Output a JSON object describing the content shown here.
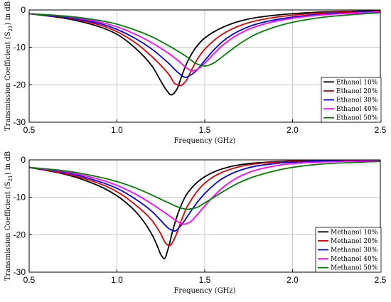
{
  "chart_data": [
    {
      "type": "line",
      "title": "",
      "xlabel": "Frequency (GHz)",
      "ylabel_main": "Transmission Coefficient (S",
      "ylabel_sub": "21",
      "ylabel_tail": ") in dB",
      "xlim": [
        0.5,
        2.5
      ],
      "ylim": [
        -30,
        0
      ],
      "xticks": [
        0.5,
        1.0,
        1.5,
        2.0,
        2.5
      ],
      "xtick_labels": [
        "0.5",
        "1.0",
        "1.5",
        "2.0",
        "2.5"
      ],
      "yticks": [
        0,
        -10,
        -20,
        -30
      ],
      "ytick_labels": [
        "0",
        "-10",
        "-20",
        "-30"
      ],
      "grid": true,
      "legend_position": "bottom-right",
      "series": [
        {
          "name": "Ethanol 10%",
          "color": "#000000",
          "values": {
            "x": [
              0.5,
              0.7,
              0.9,
              1.0,
              1.1,
              1.2,
              1.25,
              1.28,
              1.31,
              1.34,
              1.37,
              1.4,
              1.45,
              1.5,
              1.6,
              1.7,
              1.8,
              2.0,
              2.2,
              2.5
            ],
            "y": [
              -1.0,
              -2.2,
              -4.5,
              -6.5,
              -10,
              -15,
              -19,
              -21.3,
              -22.7,
              -21.3,
              -17.5,
              -14,
              -10,
              -7.5,
              -4.7,
              -3.0,
              -2.0,
              -1.0,
              -0.5,
              -0.2
            ]
          }
        },
        {
          "name": "Ethanol 20%",
          "color": "#e00000",
          "values": {
            "x": [
              0.5,
              0.7,
              0.9,
              1.0,
              1.1,
              1.2,
              1.3,
              1.33,
              1.36,
              1.39,
              1.42,
              1.46,
              1.5,
              1.6,
              1.7,
              1.8,
              2.0,
              2.2,
              2.5
            ],
            "y": [
              -1.0,
              -2.0,
              -4.0,
              -5.8,
              -8.6,
              -12.5,
              -17.5,
              -19.7,
              -20.2,
              -19.2,
              -16.5,
              -13,
              -10.5,
              -6.5,
              -4.2,
              -2.8,
              -1.4,
              -0.7,
              -0.3
            ]
          }
        },
        {
          "name": "Ethanol 30%",
          "color": "#0000e0",
          "values": {
            "x": [
              0.5,
              0.7,
              0.9,
              1.0,
              1.1,
              1.2,
              1.3,
              1.35,
              1.39,
              1.42,
              1.45,
              1.5,
              1.55,
              1.6,
              1.7,
              1.8,
              2.0,
              2.2,
              2.5
            ],
            "y": [
              -1.0,
              -1.9,
              -3.6,
              -5.2,
              -7.5,
              -10.5,
              -14.5,
              -16.8,
              -18,
              -17.4,
              -16.3,
              -13.5,
              -10.8,
              -8.5,
              -5.5,
              -3.7,
              -1.9,
              -1.0,
              -0.4
            ]
          }
        },
        {
          "name": "Ethanol 40%",
          "color": "#ff00ff",
          "values": {
            "x": [
              0.5,
              0.7,
              0.9,
              1.0,
              1.1,
              1.2,
              1.3,
              1.35,
              1.4,
              1.43,
              1.47,
              1.5,
              1.55,
              1.6,
              1.7,
              1.8,
              2.0,
              2.2,
              2.5
            ],
            "y": [
              -1.0,
              -1.7,
              -3.2,
              -4.5,
              -6.4,
              -8.8,
              -11.8,
              -13.6,
              -15.6,
              -16.3,
              -15.5,
              -14.2,
              -11.8,
              -9.5,
              -6.3,
              -4.3,
              -2.2,
              -1.2,
              -0.5
            ]
          }
        },
        {
          "name": "Ethanol 50%",
          "color": "#008000",
          "values": {
            "x": [
              0.5,
              0.7,
              0.9,
              1.0,
              1.1,
              1.2,
              1.3,
              1.4,
              1.45,
              1.5,
              1.55,
              1.6,
              1.7,
              1.8,
              2.0,
              2.2,
              2.5
            ],
            "y": [
              -1.0,
              -1.6,
              -2.8,
              -3.8,
              -5.3,
              -7.2,
              -9.7,
              -12.6,
              -14.3,
              -15.0,
              -14.2,
              -12.5,
              -9.0,
              -6.3,
              -3.3,
              -1.8,
              -0.7
            ]
          }
        }
      ]
    },
    {
      "type": "line",
      "title": "",
      "xlabel": "Frequency (GHz)",
      "ylabel_main": "Transmission Coefficient (S",
      "ylabel_sub": "21",
      "ylabel_tail": ") in dB",
      "xlim": [
        0.5,
        2.5
      ],
      "ylim": [
        -30,
        0
      ],
      "xticks": [
        0.5,
        1.0,
        1.5,
        2.0,
        2.5
      ],
      "xtick_labels": [
        "0.5",
        "1.0",
        "1.5",
        "2.0",
        "2.5"
      ],
      "yticks": [
        0,
        -10,
        -20,
        -30
      ],
      "ytick_labels": [
        "0",
        "-10",
        "-20",
        "-30"
      ],
      "grid": true,
      "legend_position": "bottom-right",
      "series": [
        {
          "name": "Methanol 10%",
          "color": "#000000",
          "values": {
            "x": [
              0.5,
              0.7,
              0.9,
              1.0,
              1.1,
              1.15,
              1.2,
              1.23,
              1.25,
              1.27,
              1.29,
              1.32,
              1.35,
              1.4,
              1.5,
              1.6,
              1.7,
              1.8,
              2.0,
              2.2,
              2.5
            ],
            "y": [
              -2.0,
              -3.8,
              -7.0,
              -9.6,
              -13.5,
              -16.3,
              -20.0,
              -23.0,
              -25.3,
              -26.4,
              -24.0,
              -18.5,
              -14.0,
              -9.0,
              -4.5,
              -2.4,
              -1.3,
              -0.8,
              -0.3,
              -0.2,
              -0.1
            ]
          }
        },
        {
          "name": "Methanol 20%",
          "color": "#e00000",
          "values": {
            "x": [
              0.5,
              0.7,
              0.9,
              1.0,
              1.1,
              1.2,
              1.25,
              1.28,
              1.3,
              1.33,
              1.37,
              1.4,
              1.5,
              1.6,
              1.7,
              1.8,
              2.0,
              2.2,
              2.5
            ],
            "y": [
              -2.0,
              -3.6,
              -6.3,
              -8.5,
              -11.8,
              -16.2,
              -19.8,
              -22.4,
              -22.9,
              -20.8,
              -15.8,
              -12.5,
              -6.2,
              -3.3,
              -1.8,
              -1.0,
              -0.4,
              -0.2,
              -0.1
            ]
          }
        },
        {
          "name": "Methanol 30%",
          "color": "#0000e0",
          "values": {
            "x": [
              0.5,
              0.7,
              0.9,
              1.0,
              1.1,
              1.2,
              1.25,
              1.3,
              1.33,
              1.36,
              1.4,
              1.45,
              1.5,
              1.6,
              1.7,
              1.8,
              2.0,
              2.2,
              2.5
            ],
            "y": [
              -2.0,
              -3.3,
              -5.8,
              -7.6,
              -10.3,
              -13.8,
              -16.2,
              -18.5,
              -19.0,
              -17.8,
              -15.2,
              -11.8,
              -9.0,
              -5.0,
              -2.8,
              -1.6,
              -0.6,
              -0.3,
              -0.1
            ]
          }
        },
        {
          "name": "Methanol 40%",
          "color": "#ff00ff",
          "values": {
            "x": [
              0.5,
              0.7,
              0.9,
              1.0,
              1.1,
              1.2,
              1.3,
              1.35,
              1.38,
              1.41,
              1.45,
              1.5,
              1.6,
              1.7,
              1.8,
              2.0,
              2.2,
              2.5
            ],
            "y": [
              -2.0,
              -3.1,
              -5.2,
              -6.8,
              -9.0,
              -11.8,
              -15.0,
              -16.6,
              -17.2,
              -16.8,
              -15.0,
              -12.3,
              -7.5,
              -4.4,
              -2.6,
              -1.0,
              -0.5,
              -0.2
            ]
          }
        },
        {
          "name": "Methanol 50%",
          "color": "#008000",
          "values": {
            "x": [
              0.5,
              0.7,
              0.9,
              1.0,
              1.1,
              1.2,
              1.3,
              1.36,
              1.4,
              1.45,
              1.5,
              1.6,
              1.7,
              1.8,
              2.0,
              2.2,
              2.5
            ],
            "y": [
              -2.0,
              -2.9,
              -4.6,
              -5.8,
              -7.4,
              -9.4,
              -11.6,
              -12.8,
              -13.2,
              -12.8,
              -11.5,
              -8.6,
              -6.0,
              -4.2,
              -2.0,
              -1.0,
              -0.4
            ]
          }
        }
      ]
    }
  ]
}
